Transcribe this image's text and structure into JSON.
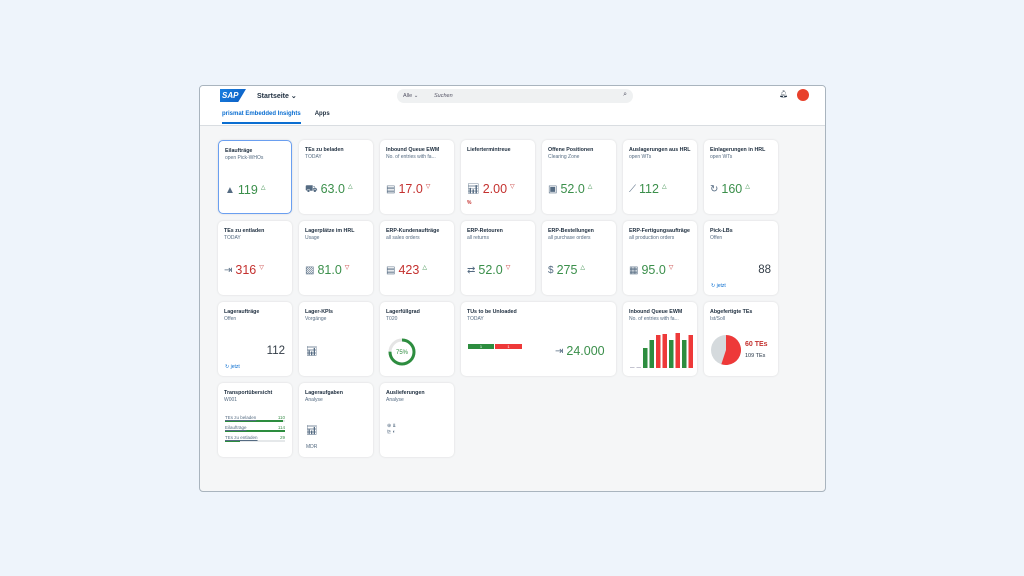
{
  "shell": {
    "logo": "SAP",
    "home": "Startseite",
    "search_scope": "Alle",
    "search_placeholder": "Suchen"
  },
  "tabs": [
    {
      "label": "prismat Embedded Insights",
      "active": true
    },
    {
      "label": "Apps",
      "active": false
    }
  ],
  "colors": {
    "accent": "#0a6ed1",
    "good": "#3b8f4b",
    "bad": "#c4312f",
    "bar_green": "#2d8d3f",
    "bar_red": "#ee3939"
  },
  "tiles": [
    {
      "title": "Eilaufträge",
      "subtitle": "open Pick-WHOs",
      "icon": "warning-icon",
      "value": "119",
      "trend": "up",
      "color": "good",
      "selected": true
    },
    {
      "title": "TEs zu beladen",
      "subtitle": "TODAY",
      "icon": "truck-load-icon",
      "value": "63.0",
      "trend": "up",
      "color": "good"
    },
    {
      "title": "Inbound Queue EWM",
      "subtitle": "No. of entries with fa...",
      "icon": "document-icon",
      "value": "17.0",
      "trend": "down",
      "color": "bad"
    },
    {
      "title": "Liefertermintreue",
      "subtitle": "",
      "icon": "bar-chart-icon",
      "value": "2.00",
      "trend": "down",
      "color": "bad",
      "unit": "%"
    },
    {
      "title": "Offene Positionen",
      "subtitle": "Clearing Zone",
      "icon": "calendar-person-icon",
      "value": "52.0",
      "trend": "up",
      "color": "good"
    },
    {
      "title": "Auslagerungen aus HRL",
      "subtitle": "open WTs",
      "icon": "line-chart-icon",
      "value": "112",
      "trend": "up",
      "color": "good"
    },
    {
      "title": "Einlagerungen in HRL",
      "subtitle": "open WTs",
      "icon": "gauge-icon",
      "value": "160",
      "trend": "up",
      "color": "good"
    },
    {
      "title": "TEs zu entladen",
      "subtitle": "TODAY",
      "icon": "unload-icon",
      "value": "316",
      "trend": "down",
      "color": "bad"
    },
    {
      "title": "Lagerplätze im HRL",
      "subtitle": "Usage",
      "icon": "image-icon",
      "value": "81.0",
      "trend": "down",
      "color": "good"
    },
    {
      "title": "ERP-Kundenaufträge",
      "subtitle": "all sales orders",
      "icon": "documents-icon",
      "value": "423",
      "trend": "up",
      "color": "bad"
    },
    {
      "title": "ERP-Retouren",
      "subtitle": "all returns",
      "icon": "return-icon",
      "value": "52.0",
      "trend": "down",
      "color": "good"
    },
    {
      "title": "ERP-Bestellungen",
      "subtitle": "all purchase orders",
      "icon": "monitor-dollar-icon",
      "value": "275",
      "trend": "up",
      "color": "good"
    },
    {
      "title": "ERP-Fertigungsaufträge",
      "subtitle": "all production orders",
      "icon": "clipboard-icon",
      "value": "95.0",
      "trend": "down",
      "color": "good"
    }
  ],
  "pick_lbs": {
    "title": "Pick-LBs",
    "subtitle": "Offen",
    "value": "88",
    "refresh": "jetzt"
  },
  "lagerauftraege": {
    "title": "Lageraufträge",
    "subtitle": "Offen",
    "value": "112",
    "refresh": "jetzt"
  },
  "lager_kpis": {
    "title": "Lager-KPIs",
    "subtitle": "Vorgänge",
    "icon": "bar-chart-icon"
  },
  "lagerfuellgrad": {
    "title": "Lagerfüllgrad",
    "subtitle": "T020",
    "percent": 75,
    "label": "75%"
  },
  "tus": {
    "title": "TUs to be Unloaded",
    "subtitle": "TODAY",
    "seg_green": "1",
    "seg_red": "1",
    "value": "24.000",
    "icon": "unload-icon"
  },
  "inbound_chart": {
    "title": "Inbound Queue EWM",
    "subtitle": "No. of entries with fa...",
    "chart_data": {
      "type": "bar",
      "values": [
        0,
        0,
        20,
        28,
        33,
        34,
        28,
        35,
        28,
        33
      ],
      "colors": [
        "gray",
        "gray",
        "green",
        "green",
        "red",
        "red",
        "green",
        "red",
        "green",
        "red"
      ]
    }
  },
  "abgefertigt": {
    "title": "Abgefertigte TEs",
    "subtitle": "Ist/Soll",
    "actual": "60 TEs",
    "target": "109 TEs",
    "actual_num": 60,
    "target_num": 109
  },
  "transport": {
    "title": "Transportübersicht",
    "subtitle": "W001",
    "rows": [
      {
        "label": "TEs zu beladen",
        "value": "110",
        "fill": 0.96
      },
      {
        "label": "Eilaufträge",
        "value": "114",
        "fill": 1
      },
      {
        "label": "TEs zu entladen",
        "value": "29",
        "fill": 0.25
      }
    ]
  },
  "lageraufgaben": {
    "title": "Lageraufgaben",
    "subtitle": "Analyse",
    "footer": "MDR"
  },
  "auslieferungen": {
    "title": "Auslieferungen",
    "subtitle": "Analyse"
  }
}
